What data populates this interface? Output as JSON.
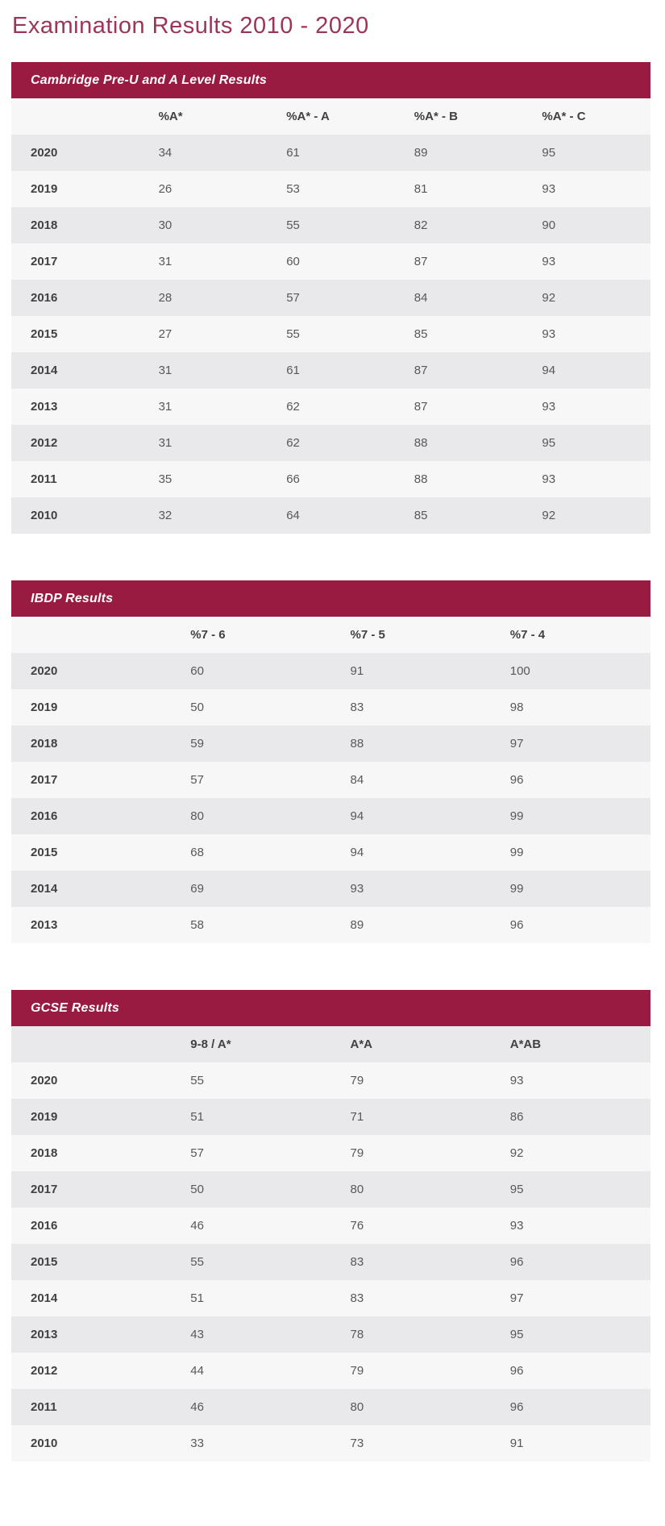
{
  "page": {
    "title": "Examination Results 2010 - 2020"
  },
  "colors": {
    "accent_maroon": "#9a1b41",
    "title_maroon": "#9e3457",
    "row_shaded": "#e9e9eb",
    "row_plain": "#f7f7f7",
    "heading_text": "#414042",
    "value_text": "#58585b"
  },
  "chart_data": [
    {
      "type": "table",
      "title": "Cambridge Pre-U and A Level Results",
      "columns": [
        "%A*",
        "%A* - A",
        "%A* - B",
        "%A* - C"
      ],
      "header_shaded": false,
      "rows": [
        {
          "year": "2020",
          "values": [
            34,
            61,
            89,
            95
          ]
        },
        {
          "year": "2019",
          "values": [
            26,
            53,
            81,
            93
          ]
        },
        {
          "year": "2018",
          "values": [
            30,
            55,
            82,
            90
          ]
        },
        {
          "year": "2017",
          "values": [
            31,
            60,
            87,
            93
          ]
        },
        {
          "year": "2016",
          "values": [
            28,
            57,
            84,
            92
          ]
        },
        {
          "year": "2015",
          "values": [
            27,
            55,
            85,
            93
          ]
        },
        {
          "year": "2014",
          "values": [
            31,
            61,
            87,
            94
          ]
        },
        {
          "year": "2013",
          "values": [
            31,
            62,
            87,
            93
          ]
        },
        {
          "year": "2012",
          "values": [
            31,
            62,
            88,
            95
          ]
        },
        {
          "year": "2011",
          "values": [
            35,
            66,
            88,
            93
          ]
        },
        {
          "year": "2010",
          "values": [
            32,
            64,
            85,
            92
          ]
        }
      ]
    },
    {
      "type": "table",
      "title": "IBDP Results",
      "columns": [
        "%7 - 6",
        "%7 - 5",
        "%7 - 4"
      ],
      "header_shaded": false,
      "rows": [
        {
          "year": "2020",
          "values": [
            60,
            91,
            100
          ]
        },
        {
          "year": "2019",
          "values": [
            50,
            83,
            98
          ]
        },
        {
          "year": "2018",
          "values": [
            59,
            88,
            97
          ]
        },
        {
          "year": "2017",
          "values": [
            57,
            84,
            96
          ]
        },
        {
          "year": "2016",
          "values": [
            80,
            94,
            99
          ]
        },
        {
          "year": "2015",
          "values": [
            68,
            94,
            99
          ]
        },
        {
          "year": "2014",
          "values": [
            69,
            93,
            99
          ]
        },
        {
          "year": "2013",
          "values": [
            58,
            89,
            96
          ]
        }
      ]
    },
    {
      "type": "table",
      "title": "GCSE Results",
      "columns": [
        "9-8 / A*",
        "A*A",
        "A*AB"
      ],
      "header_shaded": true,
      "rows": [
        {
          "year": "2020",
          "values": [
            55,
            79,
            93
          ]
        },
        {
          "year": "2019",
          "values": [
            51,
            71,
            86
          ]
        },
        {
          "year": "2018",
          "values": [
            57,
            79,
            92
          ]
        },
        {
          "year": "2017",
          "values": [
            50,
            80,
            95
          ]
        },
        {
          "year": "2016",
          "values": [
            46,
            76,
            93
          ]
        },
        {
          "year": "2015",
          "values": [
            55,
            83,
            96
          ]
        },
        {
          "year": "2014",
          "values": [
            51,
            83,
            97
          ]
        },
        {
          "year": "2013",
          "values": [
            43,
            78,
            95
          ]
        },
        {
          "year": "2012",
          "values": [
            44,
            79,
            96
          ]
        },
        {
          "year": "2011",
          "values": [
            46,
            80,
            96
          ]
        },
        {
          "year": "2010",
          "values": [
            33,
            73,
            91
          ]
        }
      ]
    }
  ]
}
